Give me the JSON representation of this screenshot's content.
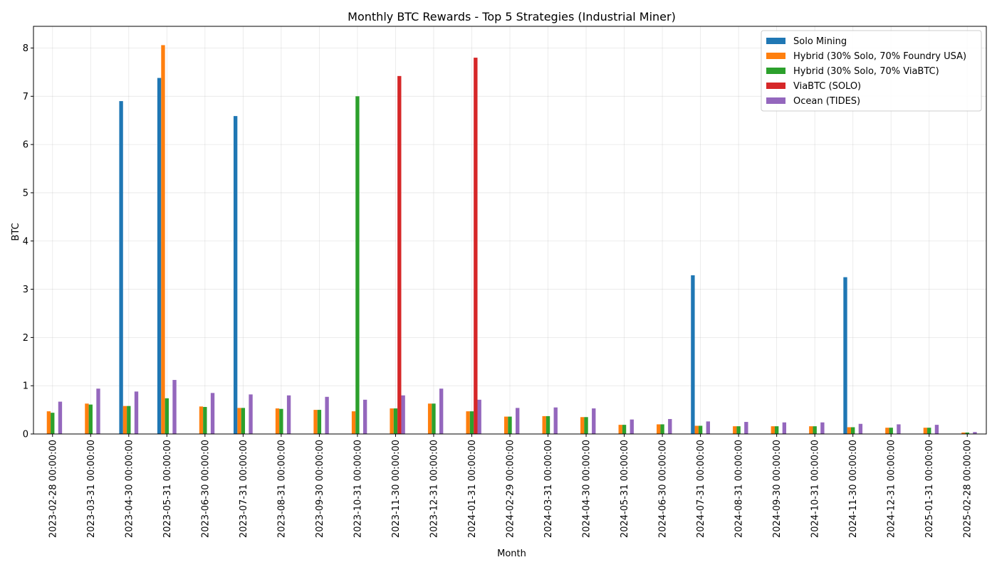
{
  "chart_data": {
    "type": "bar",
    "title": "Monthly BTC Rewards - Top 5 Strategies (Industrial Miner)",
    "xlabel": "Month",
    "ylabel": "BTC",
    "ylim": [
      0,
      8.45
    ],
    "yticks": [
      0,
      1,
      2,
      3,
      4,
      5,
      6,
      7,
      8
    ],
    "grid": true,
    "legend_position": "top-right",
    "categories": [
      "2023-02-28 00:00:00",
      "2023-03-31 00:00:00",
      "2023-04-30 00:00:00",
      "2023-05-31 00:00:00",
      "2023-06-30 00:00:00",
      "2023-07-31 00:00:00",
      "2023-08-31 00:00:00",
      "2023-09-30 00:00:00",
      "2023-10-31 00:00:00",
      "2023-11-30 00:00:00",
      "2023-12-31 00:00:00",
      "2024-01-31 00:00:00",
      "2024-02-29 00:00:00",
      "2024-03-31 00:00:00",
      "2024-04-30 00:00:00",
      "2024-05-31 00:00:00",
      "2024-06-30 00:00:00",
      "2024-07-31 00:00:00",
      "2024-08-31 00:00:00",
      "2024-09-30 00:00:00",
      "2024-10-31 00:00:00",
      "2024-11-30 00:00:00",
      "2024-12-31 00:00:00",
      "2025-01-31 00:00:00",
      "2025-02-28 00:00:00"
    ],
    "series": [
      {
        "name": "Solo Mining",
        "color": "#1f77b4",
        "values": [
          0,
          0,
          6.9,
          7.38,
          0,
          6.59,
          0,
          0,
          0,
          0,
          0,
          0,
          0,
          0,
          0,
          0,
          0,
          3.29,
          0,
          0,
          0,
          3.25,
          0,
          0,
          0
        ]
      },
      {
        "name": "Hybrid (30% Solo, 70% Foundry USA)",
        "color": "#ff7f0e",
        "values": [
          0.47,
          0.63,
          0.58,
          8.06,
          0.57,
          0.54,
          0.53,
          0.5,
          0.47,
          0.53,
          0.63,
          0.47,
          0.36,
          0.37,
          0.35,
          0.19,
          0.2,
          0.17,
          0.16,
          0.16,
          0.16,
          0.14,
          0.13,
          0.13,
          0.03
        ]
      },
      {
        "name": "Hybrid (30% Solo, 70% ViaBTC)",
        "color": "#2ca02c",
        "values": [
          0.44,
          0.61,
          0.58,
          0.74,
          0.56,
          0.54,
          0.52,
          0.5,
          7.0,
          0.53,
          0.63,
          0.47,
          0.36,
          0.37,
          0.35,
          0.19,
          0.2,
          0.17,
          0.16,
          0.16,
          0.16,
          0.14,
          0.13,
          0.13,
          0.03
        ]
      },
      {
        "name": "ViaBTC (SOLO)",
        "color": "#d62728",
        "values": [
          0,
          0,
          0,
          0,
          0,
          0,
          0,
          0,
          0,
          7.42,
          0,
          7.8,
          0,
          0,
          0,
          0,
          0,
          0,
          0,
          0,
          0,
          0,
          0,
          0,
          0
        ]
      },
      {
        "name": "Ocean (TIDES)",
        "color": "#9467bd",
        "values": [
          0.67,
          0.94,
          0.88,
          1.12,
          0.85,
          0.82,
          0.8,
          0.77,
          0.71,
          0.8,
          0.94,
          0.71,
          0.54,
          0.55,
          0.53,
          0.3,
          0.31,
          0.26,
          0.25,
          0.24,
          0.24,
          0.21,
          0.2,
          0.19,
          0.04
        ]
      }
    ]
  }
}
